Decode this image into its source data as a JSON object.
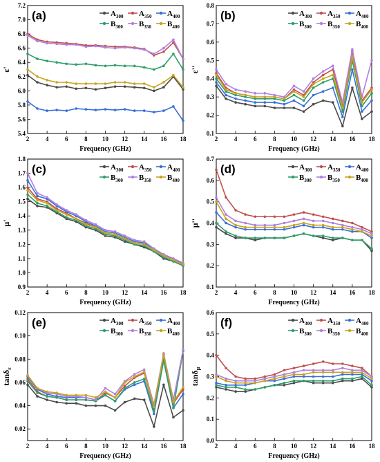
{
  "figure": {
    "xlabel": "Frequency (GHz)",
    "legend": [
      {
        "letter": "A",
        "sub": "300",
        "color": "#4a4a4a"
      },
      {
        "letter": "A",
        "sub": "350",
        "color": "#c0504d"
      },
      {
        "letter": "A",
        "sub": "400",
        "color": "#3a6fd8"
      },
      {
        "letter": "B",
        "sub": "300",
        "color": "#2e9e6a"
      },
      {
        "letter": "B",
        "sub": "350",
        "color": "#b07fe0"
      },
      {
        "letter": "B",
        "sub": "400",
        "color": "#c8a41e"
      }
    ]
  },
  "chart_data": [
    {
      "type": "line",
      "panel": "(a)",
      "ylabel_main": "ε",
      "ylabel_suffix": "'",
      "xlabel": "Frequency (GHz)",
      "xlim": [
        2,
        18
      ],
      "ylim": [
        5.4,
        7.2
      ],
      "xticks": [
        "2",
        "4",
        "6",
        "8",
        "10",
        "12",
        "14",
        "16",
        "18"
      ],
      "yticks": [
        "5.4",
        "5.6",
        "5.8",
        "6.0",
        "6.2",
        "6.4",
        "6.6",
        "6.8",
        "7.0",
        "7.2"
      ],
      "legend_position": "top-right",
      "x": [
        2,
        3,
        4,
        5,
        6,
        7,
        8,
        9,
        10,
        11,
        12,
        13,
        14,
        15,
        16,
        17,
        18
      ],
      "series": [
        {
          "name": "A300",
          "values": [
            6.22,
            6.12,
            6.08,
            6.05,
            6.06,
            6.03,
            6.04,
            6.02,
            6.04,
            6.06,
            6.06,
            6.05,
            6.04,
            6.0,
            6.05,
            6.2,
            6.02
          ]
        },
        {
          "name": "A350",
          "values": [
            6.8,
            6.72,
            6.69,
            6.68,
            6.67,
            6.66,
            6.64,
            6.64,
            6.63,
            6.62,
            6.62,
            6.61,
            6.59,
            6.5,
            6.55,
            6.68,
            6.45
          ]
        },
        {
          "name": "A400",
          "values": [
            5.85,
            5.75,
            5.72,
            5.73,
            5.72,
            5.75,
            5.74,
            5.73,
            5.74,
            5.73,
            5.74,
            5.72,
            5.72,
            5.7,
            5.72,
            5.78,
            5.58
          ]
        },
        {
          "name": "B300",
          "values": [
            6.52,
            6.45,
            6.42,
            6.4,
            6.38,
            6.37,
            6.38,
            6.36,
            6.35,
            6.36,
            6.35,
            6.35,
            6.33,
            6.3,
            6.35,
            6.52,
            6.3
          ]
        },
        {
          "name": "B350",
          "values": [
            6.78,
            6.7,
            6.67,
            6.66,
            6.65,
            6.65,
            6.62,
            6.63,
            6.61,
            6.6,
            6.61,
            6.6,
            6.58,
            6.52,
            6.6,
            6.72,
            6.45
          ]
        },
        {
          "name": "B400",
          "values": [
            6.3,
            6.2,
            6.15,
            6.12,
            6.12,
            6.1,
            6.1,
            6.1,
            6.1,
            6.12,
            6.12,
            6.1,
            6.1,
            6.05,
            6.12,
            6.22,
            6.05
          ]
        }
      ]
    },
    {
      "type": "line",
      "panel": "(b)",
      "ylabel_main": "ε",
      "ylabel_suffix": "''",
      "xlabel": "Frequency (GHz)",
      "xlim": [
        2,
        18
      ],
      "ylim": [
        0.1,
        0.8
      ],
      "xticks": [
        "2",
        "4",
        "6",
        "8",
        "10",
        "12",
        "14",
        "16",
        "18"
      ],
      "yticks": [
        "0.1",
        "0.2",
        "0.3",
        "0.4",
        "0.5",
        "0.6",
        "0.7",
        "0.8"
      ],
      "legend_position": "top-right",
      "x": [
        2,
        3,
        4,
        5,
        6,
        7,
        8,
        9,
        10,
        11,
        12,
        13,
        14,
        15,
        16,
        17,
        18
      ],
      "series": [
        {
          "name": "A300",
          "values": [
            0.36,
            0.29,
            0.27,
            0.26,
            0.25,
            0.25,
            0.24,
            0.24,
            0.24,
            0.22,
            0.26,
            0.28,
            0.27,
            0.14,
            0.35,
            0.18,
            0.22
          ]
        },
        {
          "name": "A350",
          "values": [
            0.43,
            0.35,
            0.32,
            0.31,
            0.3,
            0.3,
            0.3,
            0.29,
            0.34,
            0.31,
            0.38,
            0.42,
            0.45,
            0.25,
            0.55,
            0.28,
            0.35
          ]
        },
        {
          "name": "A400",
          "values": [
            0.38,
            0.31,
            0.29,
            0.28,
            0.27,
            0.27,
            0.27,
            0.26,
            0.28,
            0.25,
            0.31,
            0.33,
            0.35,
            0.19,
            0.45,
            0.22,
            0.28
          ]
        },
        {
          "name": "B300",
          "values": [
            0.4,
            0.33,
            0.31,
            0.3,
            0.29,
            0.29,
            0.29,
            0.28,
            0.31,
            0.28,
            0.35,
            0.38,
            0.4,
            0.22,
            0.5,
            0.25,
            0.32
          ]
        },
        {
          "name": "B350",
          "values": [
            0.45,
            0.37,
            0.34,
            0.33,
            0.32,
            0.32,
            0.31,
            0.3,
            0.36,
            0.33,
            0.4,
            0.44,
            0.47,
            0.27,
            0.56,
            0.3,
            0.5
          ]
        },
        {
          "name": "B400",
          "values": [
            0.42,
            0.34,
            0.32,
            0.31,
            0.3,
            0.3,
            0.3,
            0.29,
            0.33,
            0.3,
            0.37,
            0.4,
            0.42,
            0.24,
            0.52,
            0.27,
            0.34
          ]
        }
      ]
    },
    {
      "type": "line",
      "panel": "(c)",
      "ylabel_main": "μ",
      "ylabel_suffix": "'",
      "xlabel": "Frequency (GHz)",
      "xlim": [
        2,
        18
      ],
      "ylim": [
        0.9,
        1.8
      ],
      "xticks": [
        "2",
        "4",
        "6",
        "8",
        "10",
        "12",
        "14",
        "16",
        "18"
      ],
      "yticks": [
        "0.9",
        "1.0",
        "1.1",
        "1.2",
        "1.3",
        "1.4",
        "1.5",
        "1.6",
        "1.7",
        "1.8"
      ],
      "legend_position": "top-right",
      "x": [
        2,
        3,
        4,
        5,
        6,
        7,
        8,
        9,
        10,
        11,
        12,
        13,
        14,
        15,
        16,
        17,
        18
      ],
      "series": [
        {
          "name": "A300",
          "values": [
            1.52,
            1.47,
            1.46,
            1.42,
            1.38,
            1.36,
            1.32,
            1.3,
            1.26,
            1.25,
            1.22,
            1.2,
            1.18,
            1.15,
            1.1,
            1.08,
            1.05
          ]
        },
        {
          "name": "A350",
          "values": [
            1.6,
            1.52,
            1.5,
            1.45,
            1.42,
            1.38,
            1.35,
            1.32,
            1.28,
            1.27,
            1.24,
            1.21,
            1.2,
            1.16,
            1.12,
            1.09,
            1.06
          ]
        },
        {
          "name": "A400",
          "values": [
            1.65,
            1.54,
            1.52,
            1.47,
            1.43,
            1.4,
            1.36,
            1.33,
            1.29,
            1.28,
            1.25,
            1.22,
            1.21,
            1.17,
            1.12,
            1.1,
            1.06
          ]
        },
        {
          "name": "B300",
          "values": [
            1.55,
            1.49,
            1.47,
            1.43,
            1.39,
            1.37,
            1.33,
            1.31,
            1.27,
            1.26,
            1.23,
            1.2,
            1.19,
            1.15,
            1.11,
            1.08,
            1.05
          ]
        },
        {
          "name": "B350",
          "values": [
            1.7,
            1.56,
            1.53,
            1.48,
            1.44,
            1.41,
            1.37,
            1.34,
            1.3,
            1.29,
            1.26,
            1.23,
            1.22,
            1.17,
            1.13,
            1.1,
            1.07
          ]
        },
        {
          "name": "B400",
          "values": [
            1.58,
            1.51,
            1.49,
            1.44,
            1.41,
            1.38,
            1.34,
            1.32,
            1.28,
            1.27,
            1.24,
            1.21,
            1.2,
            1.16,
            1.12,
            1.09,
            1.06
          ]
        }
      ]
    },
    {
      "type": "line",
      "panel": "(d)",
      "ylabel_main": "μ",
      "ylabel_suffix": "''",
      "xlabel": "Frequency (GHz)",
      "xlim": [
        2,
        18
      ],
      "ylim": [
        0.1,
        0.7
      ],
      "xticks": [
        "2",
        "4",
        "6",
        "8",
        "10",
        "12",
        "14",
        "16",
        "18"
      ],
      "yticks": [
        "0.1",
        "0.2",
        "0.3",
        "0.4",
        "0.5",
        "0.6",
        "0.7"
      ],
      "legend_position": "top-right",
      "x": [
        2,
        3,
        4,
        5,
        6,
        7,
        8,
        9,
        10,
        11,
        12,
        13,
        14,
        15,
        16,
        17,
        18
      ],
      "series": [
        {
          "name": "A300",
          "values": [
            0.38,
            0.35,
            0.33,
            0.33,
            0.32,
            0.33,
            0.33,
            0.33,
            0.34,
            0.35,
            0.34,
            0.33,
            0.32,
            0.33,
            0.32,
            0.32,
            0.27
          ]
        },
        {
          "name": "A350",
          "values": [
            0.65,
            0.52,
            0.46,
            0.44,
            0.43,
            0.43,
            0.43,
            0.43,
            0.44,
            0.45,
            0.44,
            0.43,
            0.42,
            0.41,
            0.4,
            0.38,
            0.36
          ]
        },
        {
          "name": "A400",
          "values": [
            0.45,
            0.4,
            0.38,
            0.37,
            0.37,
            0.37,
            0.37,
            0.37,
            0.38,
            0.39,
            0.38,
            0.38,
            0.37,
            0.37,
            0.36,
            0.36,
            0.33
          ]
        },
        {
          "name": "B300",
          "values": [
            0.4,
            0.36,
            0.34,
            0.33,
            0.33,
            0.33,
            0.33,
            0.33,
            0.34,
            0.35,
            0.34,
            0.34,
            0.33,
            0.33,
            0.32,
            0.32,
            0.28
          ]
        },
        {
          "name": "B350",
          "values": [
            0.52,
            0.44,
            0.41,
            0.4,
            0.39,
            0.39,
            0.39,
            0.4,
            0.41,
            0.42,
            0.41,
            0.41,
            0.4,
            0.39,
            0.38,
            0.37,
            0.35
          ]
        },
        {
          "name": "B400",
          "values": [
            0.5,
            0.42,
            0.39,
            0.38,
            0.38,
            0.38,
            0.38,
            0.38,
            0.39,
            0.4,
            0.39,
            0.39,
            0.38,
            0.38,
            0.37,
            0.36,
            0.34
          ]
        }
      ]
    },
    {
      "type": "line",
      "panel": "(e)",
      "ylabel_main": "tanδ",
      "ylabel_sub": "ε",
      "xlabel": "Frequency (GHz)",
      "xlim": [
        2,
        18
      ],
      "ylim": [
        0.01,
        0.12
      ],
      "xticks": [
        "2",
        "4",
        "6",
        "8",
        "10",
        "12",
        "14",
        "16",
        "18"
      ],
      "yticks": [
        "0.02",
        "0.04",
        "0.06",
        "0.08",
        "0.10",
        "0.12"
      ],
      "legend_position": "top-right",
      "x": [
        2,
        3,
        4,
        5,
        6,
        7,
        8,
        9,
        10,
        11,
        12,
        13,
        14,
        15,
        16,
        17,
        18
      ],
      "series": [
        {
          "name": "A300",
          "values": [
            0.058,
            0.048,
            0.045,
            0.043,
            0.042,
            0.042,
            0.04,
            0.04,
            0.04,
            0.036,
            0.043,
            0.046,
            0.045,
            0.022,
            0.058,
            0.03,
            0.036
          ]
        },
        {
          "name": "A350",
          "values": [
            0.063,
            0.052,
            0.048,
            0.047,
            0.045,
            0.045,
            0.045,
            0.044,
            0.051,
            0.047,
            0.057,
            0.064,
            0.068,
            0.038,
            0.083,
            0.042,
            0.054
          ]
        },
        {
          "name": "A400",
          "values": [
            0.065,
            0.054,
            0.05,
            0.048,
            0.047,
            0.047,
            0.047,
            0.045,
            0.049,
            0.044,
            0.054,
            0.058,
            0.061,
            0.033,
            0.079,
            0.038,
            0.05
          ]
        },
        {
          "name": "B300",
          "values": [
            0.061,
            0.051,
            0.048,
            0.047,
            0.045,
            0.045,
            0.045,
            0.044,
            0.049,
            0.044,
            0.055,
            0.06,
            0.063,
            0.035,
            0.079,
            0.038,
            0.087
          ]
        },
        {
          "name": "B350",
          "values": [
            0.066,
            0.055,
            0.051,
            0.05,
            0.048,
            0.048,
            0.047,
            0.045,
            0.055,
            0.05,
            0.061,
            0.067,
            0.071,
            0.041,
            0.085,
            0.045,
            0.088
          ]
        },
        {
          "name": "B400",
          "values": [
            0.066,
            0.055,
            0.052,
            0.051,
            0.049,
            0.049,
            0.049,
            0.047,
            0.052,
            0.047,
            0.06,
            0.065,
            0.069,
            0.039,
            0.084,
            0.043,
            0.056
          ]
        }
      ]
    },
    {
      "type": "line",
      "panel": "(f)",
      "ylabel_main": "tanδ",
      "ylabel_sub": "μ",
      "xlabel": "Frequency (GHz)",
      "xlim": [
        2,
        18
      ],
      "ylim": [
        0.0,
        0.6
      ],
      "xticks": [
        "2",
        "4",
        "6",
        "8",
        "10",
        "12",
        "14",
        "16",
        "18"
      ],
      "yticks": [
        "0.0",
        "0.1",
        "0.2",
        "0.3",
        "0.4",
        "0.5",
        "0.6"
      ],
      "legend_position": "top-right",
      "x": [
        2,
        3,
        4,
        5,
        6,
        7,
        8,
        9,
        10,
        11,
        12,
        13,
        14,
        15,
        16,
        17,
        18
      ],
      "series": [
        {
          "name": "A300",
          "values": [
            0.25,
            0.24,
            0.23,
            0.23,
            0.24,
            0.25,
            0.26,
            0.26,
            0.27,
            0.28,
            0.27,
            0.27,
            0.27,
            0.28,
            0.28,
            0.29,
            0.25
          ]
        },
        {
          "name": "A350",
          "values": [
            0.4,
            0.34,
            0.3,
            0.29,
            0.29,
            0.3,
            0.31,
            0.33,
            0.34,
            0.35,
            0.36,
            0.37,
            0.36,
            0.36,
            0.35,
            0.34,
            0.3
          ]
        },
        {
          "name": "A400",
          "values": [
            0.27,
            0.26,
            0.26,
            0.26,
            0.27,
            0.28,
            0.28,
            0.29,
            0.3,
            0.3,
            0.3,
            0.3,
            0.3,
            0.31,
            0.31,
            0.31,
            0.28
          ]
        },
        {
          "name": "B300",
          "values": [
            0.26,
            0.25,
            0.25,
            0.24,
            0.24,
            0.25,
            0.26,
            0.27,
            0.28,
            0.28,
            0.28,
            0.28,
            0.28,
            0.29,
            0.29,
            0.3,
            0.26
          ]
        },
        {
          "name": "B350",
          "values": [
            0.31,
            0.29,
            0.28,
            0.28,
            0.28,
            0.29,
            0.3,
            0.31,
            0.32,
            0.33,
            0.33,
            0.33,
            0.33,
            0.34,
            0.33,
            0.33,
            0.3
          ]
        },
        {
          "name": "B400",
          "values": [
            0.3,
            0.28,
            0.27,
            0.27,
            0.27,
            0.28,
            0.29,
            0.3,
            0.31,
            0.31,
            0.32,
            0.32,
            0.32,
            0.32,
            0.32,
            0.32,
            0.29
          ]
        }
      ]
    }
  ]
}
